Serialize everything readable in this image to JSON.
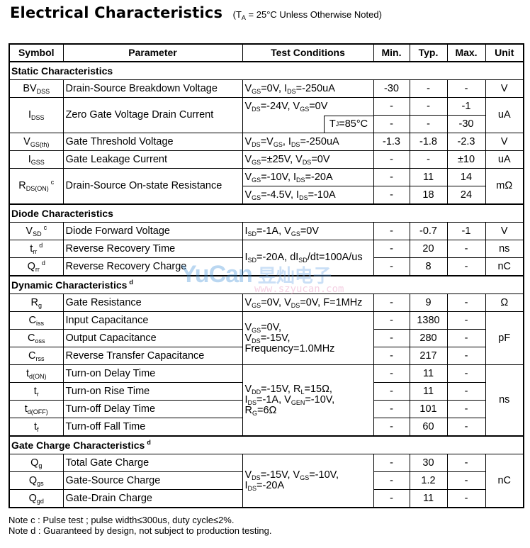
{
  "title": "Electrical Characteristics",
  "title_condition": "(T_{A} = 25°C Unless Otherwise Noted)",
  "headers": [
    "Symbol",
    "Parameter",
    "Test Conditions",
    "Min.",
    "Typ.",
    "Max.",
    "Unit"
  ],
  "rows": [
    {
      "section": "Static Characteristics"
    },
    {
      "sym": "BV_{DSS}",
      "param": "Drain-Source Breakdown Voltage",
      "cond": "V_{GS}=0V, I_{DS}=-250uA",
      "min": "-30",
      "typ": "-",
      "max": "-",
      "unit": "V"
    },
    {
      "sym": "I_{DSS}",
      "sym_rows": 2,
      "param": "Zero Gate Voltage Drain Current",
      "cond": "V_{DS}=-24V, V_{GS}=0V",
      "cond_style": "tjtop",
      "min": "-",
      "typ": "-",
      "max": "-1",
      "unit": "uA",
      "unit_rows": 2
    },
    {
      "tj": "T_{J}=85°C",
      "min": "-",
      "typ": "-",
      "max": "-30"
    },
    {
      "sym": "V_{GS(th)}",
      "param": "Gate Threshold Voltage",
      "cond": "V_{DS}=V_{GS}, I_{DS}=-250uA",
      "min": "-1.3",
      "typ": "-1.8",
      "max": "-2.3",
      "unit": "V"
    },
    {
      "sym": "I_{GSS}",
      "param": "Gate Leakage Current",
      "cond": "V_{GS}=±25V, V_{DS}=0V",
      "min": "-",
      "typ": "-",
      "max": "±10",
      "unit": "uA"
    },
    {
      "sym": "R_{DS(ON)}^{c}",
      "sym_rows": 2,
      "param": "Drain-Source On-state Resistance",
      "cond": "V_{GS}=-10V, I_{DS}=-20A",
      "min": "-",
      "typ": "11",
      "max": "14",
      "unit": "mΩ",
      "unit_rows": 2
    },
    {
      "cond": "V_{GS}=-4.5V, I_{DS}=-10A",
      "min": "-",
      "typ": "18",
      "max": "24"
    },
    {
      "section": "Diode Characteristics"
    },
    {
      "sym": "V_{SD}^{c}",
      "param": "Diode Forward Voltage",
      "cond": "I_{SD}=-1A, V_{GS}=0V",
      "min": "-",
      "typ": "-0.7",
      "max": "-1",
      "unit": "V"
    },
    {
      "sym": "t_{rr}^{d}",
      "param": "Reverse Recovery Time",
      "cond": "I_{SD}=-20A, dI_{SD}/dt=100A/us",
      "cond_rows": 2,
      "min": "-",
      "typ": "20",
      "max": "-",
      "unit": "ns"
    },
    {
      "sym": "Q_{rr}^{d}",
      "param": "Reverse Recovery Charge",
      "min": "-",
      "typ": "8",
      "max": "-",
      "unit": "nC"
    },
    {
      "section": "Dynamic Characteristics^{d}"
    },
    {
      "sym": "R_{g}",
      "param": "Gate Resistance",
      "cond": "V_{GS}=0V, V_{DS}=0V, F=1MHz",
      "min": "-",
      "typ": "9",
      "max": "-",
      "unit": "Ω"
    },
    {
      "sym": "C_{iss}",
      "param": "Input Capacitance",
      "cond": "V_{GS}=0V,\nV_{DS}=-15V,\nFrequency=1.0MHz",
      "cond_rows": 3,
      "min": "-",
      "typ": "1380",
      "max": "-",
      "unit": "pF",
      "unit_rows": 3
    },
    {
      "sym": "C_{oss}",
      "param": "Output Capacitance",
      "min": "-",
      "typ": "280",
      "max": "-"
    },
    {
      "sym": "C_{rss}",
      "param": "Reverse Transfer Capacitance",
      "min": "-",
      "typ": "217",
      "max": "-"
    },
    {
      "sym": "t_{d(ON)}",
      "param": "Turn-on Delay Time",
      "cond": "V_{DD}=-15V, R_{L}=15Ω,\nI_{DS}=-1A, V_{GEN}=-10V,\nR_{G}=6Ω",
      "cond_rows": 4,
      "min": "-",
      "typ": "11",
      "max": "-",
      "unit": "ns",
      "unit_rows": 4
    },
    {
      "sym": "t_{r}",
      "param": "Turn-on Rise Time",
      "min": "-",
      "typ": "11",
      "max": "-"
    },
    {
      "sym": "t_{d(OFF)}",
      "param": "Turn-off Delay Time",
      "min": "-",
      "typ": "101",
      "max": "-"
    },
    {
      "sym": "t_{f}",
      "param": "Turn-off Fall Time",
      "min": "-",
      "typ": "60",
      "max": "-"
    },
    {
      "section": "Gate Charge Characteristics^{d}"
    },
    {
      "sym": "Q_{g}",
      "param": "Total Gate Charge",
      "cond": "V_{DS}=-15V, V_{GS}=-10V,\nI_{DS}=-20A",
      "cond_rows": 3,
      "min": "-",
      "typ": "30",
      "max": "-",
      "unit": "nC",
      "unit_rows": 3
    },
    {
      "sym": "Q_{gs}",
      "param": "Gate-Source Charge",
      "min": "-",
      "typ": "1.2",
      "max": "-"
    },
    {
      "sym": "Q_{gd}",
      "param": "Gate-Drain Charge",
      "min": "-",
      "typ": "11",
      "max": "-"
    }
  ],
  "notes": [
    "Note c : Pulse test ; pulse width≤300us, duty cycle≤2%.",
    "Note d : Guaranteed by design, not subject to production testing."
  ],
  "watermark": {
    "brand": "YuCan",
    "chinese": "昱灿电子",
    "url": "www.szyucan.com",
    "colors": {
      "brand": "#3b8fd8",
      "url": "#e07ab0"
    }
  }
}
